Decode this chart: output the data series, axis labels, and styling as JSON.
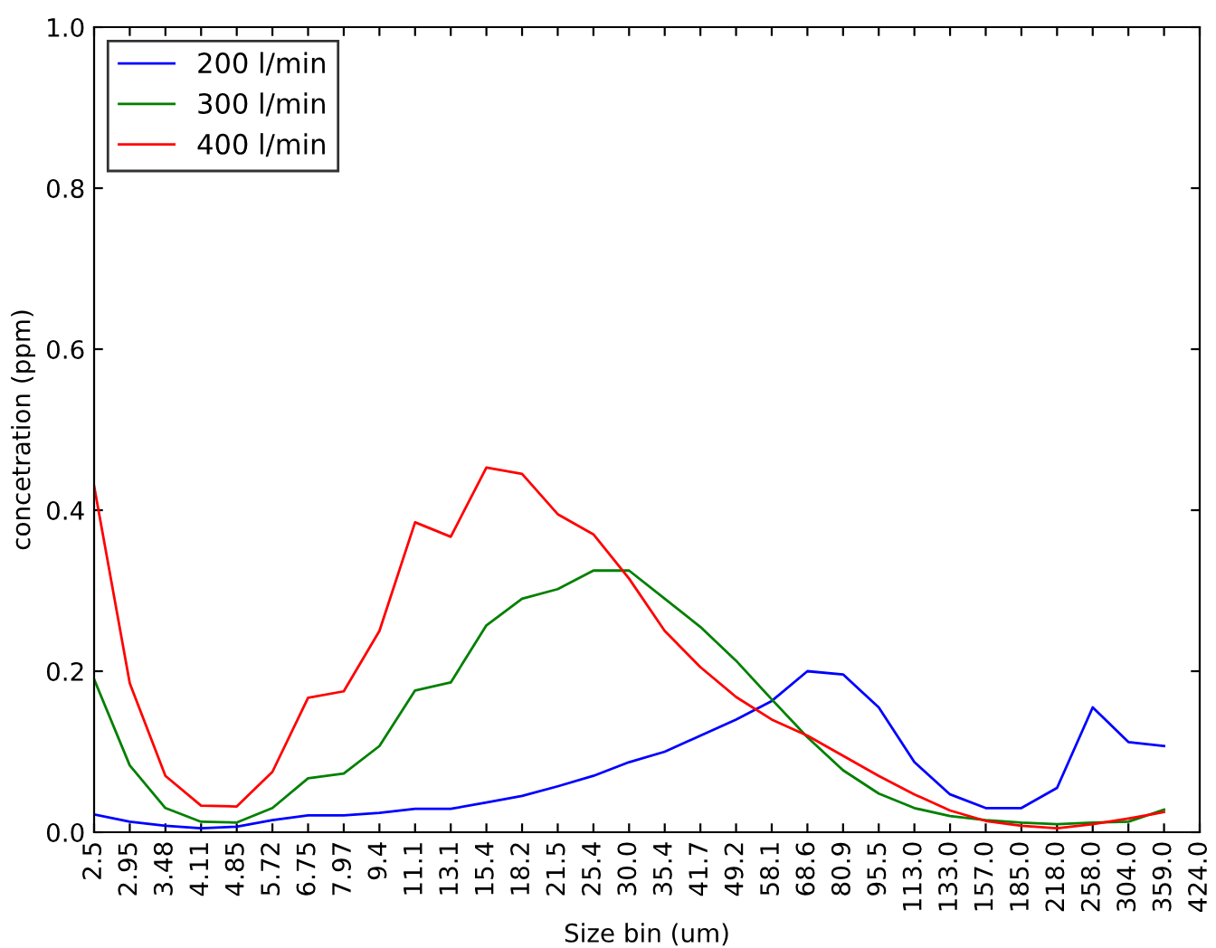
{
  "chart_data": {
    "type": "line",
    "xlabel": "Size bin (um)",
    "ylabel": "concetration (ppm)",
    "categories": [
      "2.5",
      "2.95",
      "3.48",
      "4.11",
      "4.85",
      "5.72",
      "6.75",
      "7.97",
      "9.4",
      "11.1",
      "13.1",
      "15.4",
      "18.2",
      "21.5",
      "25.4",
      "30.0",
      "35.4",
      "41.7",
      "49.2",
      "58.1",
      "68.6",
      "80.9",
      "95.5",
      "113.0",
      "133.0",
      "157.0",
      "185.0",
      "218.0",
      "258.0",
      "304.0",
      "359.0",
      "424.0"
    ],
    "series": [
      {
        "name": "200 l/min",
        "color": "#0000ff",
        "values": [
          0.022,
          0.013,
          0.008,
          0.005,
          0.007,
          0.015,
          0.021,
          0.021,
          0.024,
          0.029,
          0.029,
          0.037,
          0.045,
          0.057,
          0.07,
          0.087,
          0.1,
          0.12,
          0.14,
          0.163,
          0.2,
          0.196,
          0.155,
          0.087,
          0.047,
          0.03,
          0.03,
          0.055,
          0.155,
          0.112,
          0.107,
          null
        ]
      },
      {
        "name": "300 l/min",
        "color": "#008000",
        "values": [
          0.19,
          0.083,
          0.03,
          0.013,
          0.012,
          0.03,
          0.067,
          0.073,
          0.107,
          0.176,
          0.186,
          0.257,
          0.29,
          0.302,
          0.325,
          0.325,
          0.29,
          0.255,
          0.213,
          0.165,
          0.118,
          0.077,
          0.048,
          0.03,
          0.02,
          0.015,
          0.012,
          0.01,
          0.012,
          0.013,
          0.028,
          null
        ]
      },
      {
        "name": "400 l/min",
        "color": "#ff0000",
        "values": [
          0.43,
          0.185,
          0.07,
          0.033,
          0.032,
          0.075,
          0.167,
          0.175,
          0.25,
          0.385,
          0.367,
          0.453,
          0.445,
          0.395,
          0.37,
          0.315,
          0.25,
          0.205,
          0.168,
          0.14,
          0.12,
          0.095,
          0.07,
          0.047,
          0.027,
          0.014,
          0.008,
          0.005,
          0.01,
          0.017,
          0.025,
          null
        ]
      }
    ],
    "ylim": [
      0.0,
      1.0
    ],
    "yticks": [
      {
        "value": 0,
        "label": "0.0"
      },
      {
        "value": 0.2,
        "label": "0.2"
      },
      {
        "value": 0.4,
        "label": "0.4"
      },
      {
        "value": 0.6,
        "label": "0.6"
      },
      {
        "value": 0.8,
        "label": "0.8"
      },
      {
        "value": 1.0,
        "label": "1.0"
      }
    ],
    "legend": "top left",
    "grid": false,
    "marker": "none",
    "line_style": "solid"
  }
}
